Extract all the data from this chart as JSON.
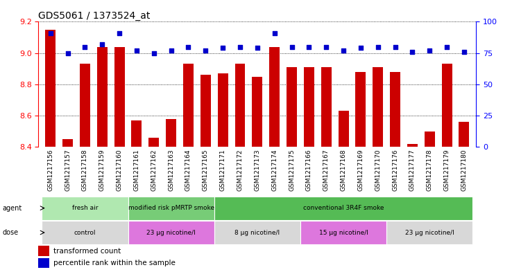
{
  "title": "GDS5061 / 1373524_at",
  "samples": [
    "GSM1217156",
    "GSM1217157",
    "GSM1217158",
    "GSM1217159",
    "GSM1217160",
    "GSM1217161",
    "GSM1217162",
    "GSM1217163",
    "GSM1217164",
    "GSM1217165",
    "GSM1217171",
    "GSM1217172",
    "GSM1217173",
    "GSM1217174",
    "GSM1217175",
    "GSM1217166",
    "GSM1217167",
    "GSM1217168",
    "GSM1217169",
    "GSM1217170",
    "GSM1217176",
    "GSM1217177",
    "GSM1217178",
    "GSM1217179",
    "GSM1217180"
  ],
  "bar_values": [
    9.15,
    8.45,
    8.93,
    9.04,
    9.04,
    8.57,
    8.46,
    8.58,
    8.93,
    8.86,
    8.87,
    8.93,
    8.85,
    9.04,
    8.91,
    8.91,
    8.91,
    8.63,
    8.88,
    8.91,
    8.88,
    8.42,
    8.5,
    8.93,
    8.56
  ],
  "percentile_values": [
    91,
    75,
    80,
    82,
    91,
    77,
    75,
    77,
    80,
    77,
    79,
    80,
    79,
    91,
    80,
    80,
    80,
    77,
    79,
    80,
    80,
    76,
    77,
    80,
    76
  ],
  "ylim_left": [
    8.4,
    9.2
  ],
  "ylim_right": [
    0,
    100
  ],
  "yticks_left": [
    8.4,
    8.6,
    8.8,
    9.0,
    9.2
  ],
  "yticks_right": [
    0,
    25,
    50,
    75,
    100
  ],
  "bar_color": "#cc0000",
  "dot_color": "#0000cc",
  "bar_width": 0.6,
  "agent_groups": [
    {
      "label": "fresh air",
      "start": 0,
      "end": 5,
      "color": "#b0e8b0"
    },
    {
      "label": "modified risk pMRTP smoke",
      "start": 5,
      "end": 10,
      "color": "#77cc77"
    },
    {
      "label": "conventional 3R4F smoke",
      "start": 10,
      "end": 25,
      "color": "#55bb55"
    }
  ],
  "dose_groups": [
    {
      "label": "control",
      "start": 0,
      "end": 5,
      "color": "#d8d8d8"
    },
    {
      "label": "23 μg nicotine/l",
      "start": 5,
      "end": 10,
      "color": "#dd77dd"
    },
    {
      "label": "8 μg nicotine/l",
      "start": 10,
      "end": 15,
      "color": "#d8d8d8"
    },
    {
      "label": "15 μg nicotine/l",
      "start": 15,
      "end": 20,
      "color": "#dd77dd"
    },
    {
      "label": "23 μg nicotine/l",
      "start": 20,
      "end": 25,
      "color": "#d8d8d8"
    }
  ],
  "agent_label": "agent",
  "dose_label": "dose",
  "legend_bar_label": "transformed count",
  "legend_dot_label": "percentile rank within the sample",
  "title_fontsize": 10,
  "tick_fontsize": 6.5,
  "axis_tick_fontsize": 8
}
